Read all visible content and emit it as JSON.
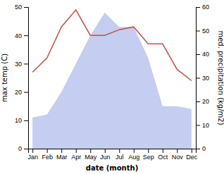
{
  "chart_data": {
    "type": "line",
    "categories": [
      "Jan",
      "Feb",
      "Mar",
      "Apr",
      "May",
      "Jun",
      "Jul",
      "Aug",
      "Sep",
      "Oct",
      "Nov",
      "Dec"
    ],
    "xlabel": "date (month)",
    "ylabel": "max temp (C)",
    "y2label": "med. precipitation (kg/m2)",
    "ylim": [
      0,
      50
    ],
    "yticks": [
      0,
      10,
      20,
      30,
      40,
      50
    ],
    "y2lim": [
      0,
      60
    ],
    "y2ticks": [
      0,
      10,
      20,
      30,
      40,
      50,
      60
    ],
    "grid": false,
    "series": [
      {
        "type": "area",
        "color": "#c5cdf0",
        "values": [
          11,
          12,
          20,
          30,
          40,
          48,
          43,
          43,
          32,
          15,
          15,
          14
        ]
      },
      {
        "type": "line",
        "color": "#c0504d",
        "values": [
          27,
          32,
          43,
          49,
          40,
          40,
          42,
          43,
          37,
          37,
          28,
          24
        ]
      }
    ]
  }
}
